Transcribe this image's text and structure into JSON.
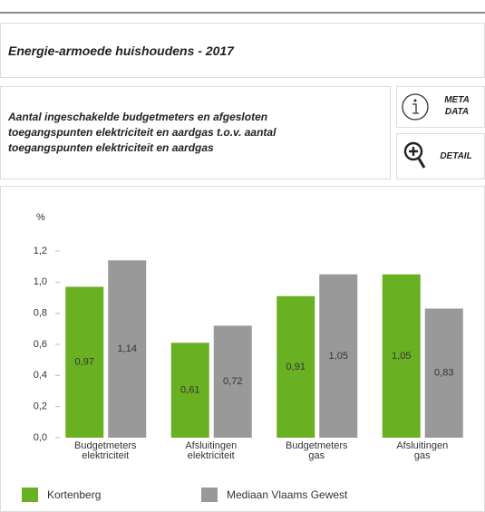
{
  "header": {
    "title": "Energie-armoede huishoudens - 2017"
  },
  "description": "Aantal ingeschakelde budgetmeters en afgesloten toegangspunten elektriciteit en aardgas t.o.v. aantal toegangspunten elektriciteit en aardgas",
  "buttons": {
    "meta": [
      "META",
      "DATA"
    ],
    "detail": "DETAIL"
  },
  "chart_data": {
    "type": "bar",
    "y_label": "%",
    "categories": [
      "Budgetmeters elektriciteit",
      "Afsluitingen elektriciteit",
      "Budgetmeters gas",
      "Afsluitingen gas"
    ],
    "series": [
      {
        "name": "Kortenberg",
        "color": "#6ab023",
        "values": [
          0.97,
          0.61,
          0.91,
          1.05
        ],
        "value_labels": [
          "0,97",
          "0,61",
          "0,91",
          "1,05"
        ]
      },
      {
        "name": "Mediaan Vlaams Gewest",
        "color": "#999999",
        "values": [
          1.14,
          0.72,
          1.05,
          0.83
        ],
        "value_labels": [
          "1,14",
          "0,72",
          "1,05",
          "0,83"
        ]
      }
    ],
    "ylim": [
      0,
      1.2
    ],
    "yticks": [
      {
        "value": 0,
        "label": "0,0"
      },
      {
        "value": 0.2,
        "label": "0,2"
      },
      {
        "value": 0.4,
        "label": "0,4"
      },
      {
        "value": 0.6,
        "label": "0,6"
      },
      {
        "value": 0.8,
        "label": "0,8"
      },
      {
        "value": 1.0,
        "label": "1,0"
      },
      {
        "value": 1.2,
        "label": "1,2"
      }
    ],
    "grid": false
  }
}
